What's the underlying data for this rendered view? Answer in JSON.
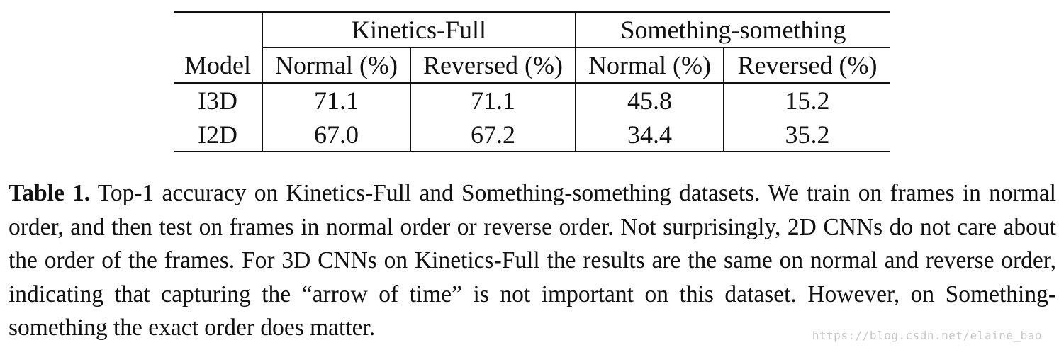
{
  "table": {
    "group_headers": {
      "blank": "",
      "group1": "Kinetics-Full",
      "group2": "Something-something"
    },
    "columns": [
      "Model",
      "Normal (%)",
      "Reversed (%)",
      "Normal (%)",
      "Reversed (%)"
    ],
    "rows": [
      {
        "model": "I3D",
        "kin_normal": "71.1",
        "kin_reversed": "71.1",
        "ss_normal": "45.8",
        "ss_reversed": "15.2"
      },
      {
        "model": "I2D",
        "kin_normal": "67.0",
        "kin_reversed": "67.2",
        "ss_normal": "34.4",
        "ss_reversed": "35.2"
      }
    ]
  },
  "caption": {
    "label": "Table 1.",
    "text": "Top-1 accuracy on Kinetics-Full and Something-something datasets. We train on frames in normal order, and then test on frames in normal order or reverse order. Not surprisingly, 2D CNNs do not care about the order of the frames. For 3D CNNs on Kinetics-Full the results are the same on normal and reverse order, indicating that capturing the “arrow of time” is not important on this dataset. However, on Something-something the exact order does matter."
  },
  "watermark": "https://blog.csdn.net/elaine_bao"
}
